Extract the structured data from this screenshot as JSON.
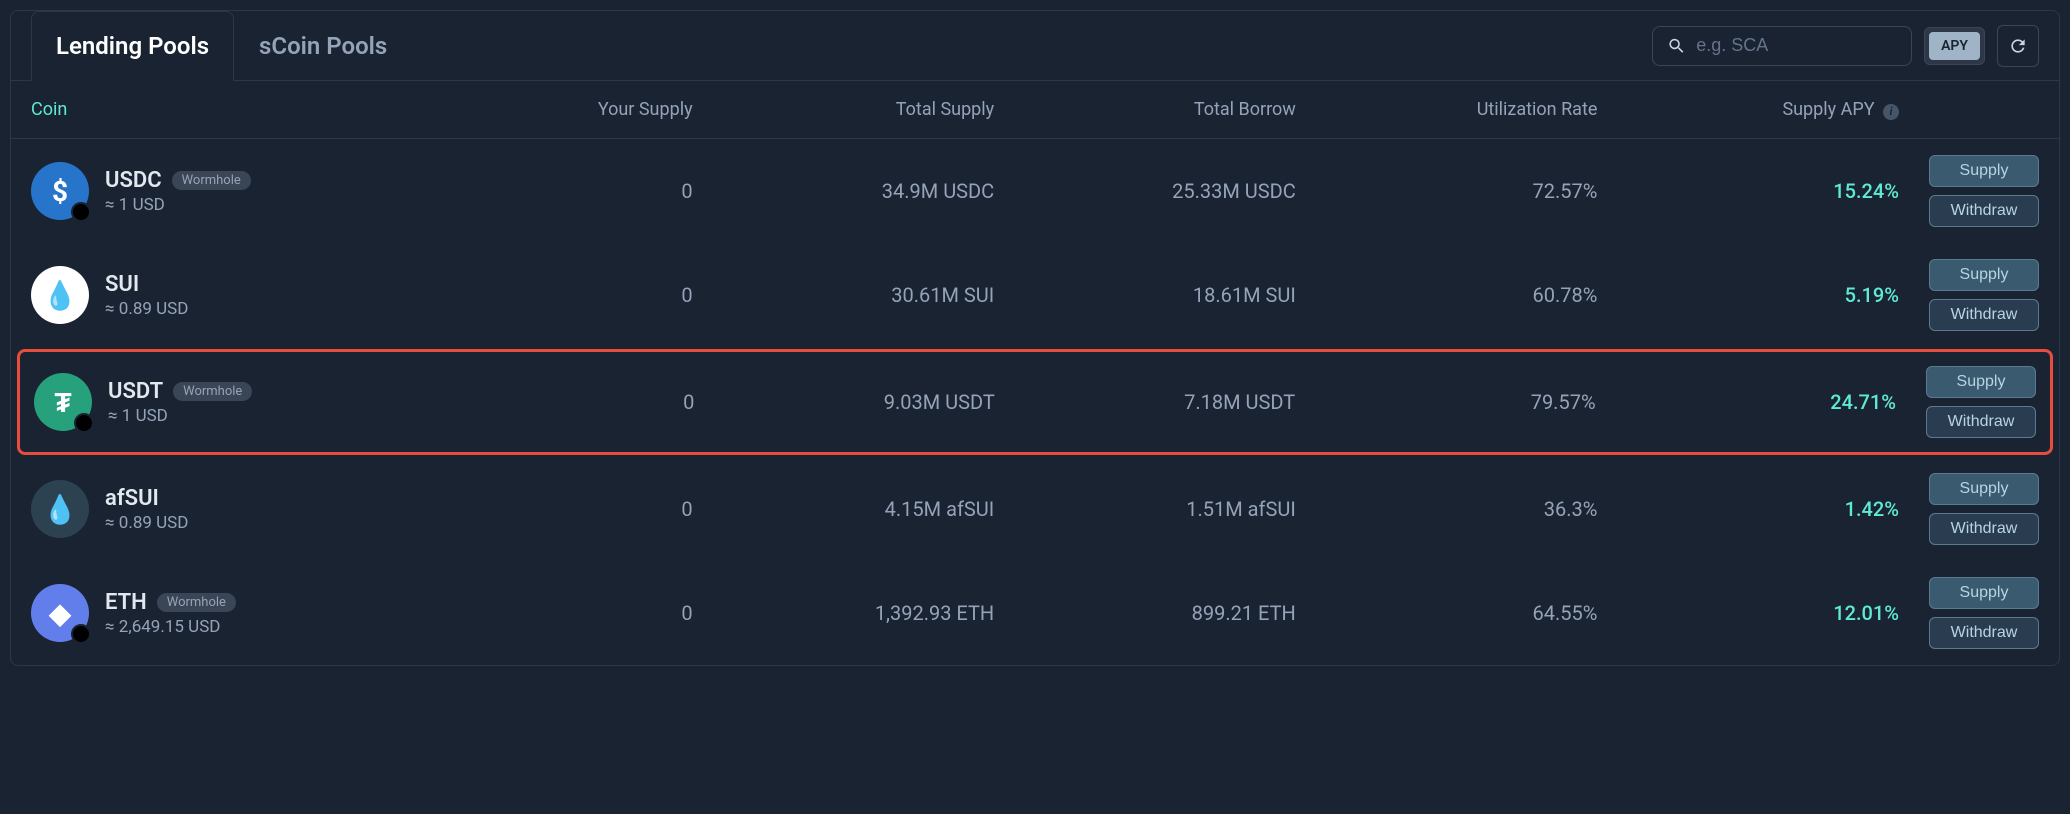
{
  "tabs": {
    "active": "Lending Pools",
    "inactive": "sCoin Pools"
  },
  "search": {
    "placeholder": "e.g. SCA"
  },
  "apy_button": "APY",
  "columns": {
    "coin": "Coin",
    "your_supply": "Your Supply",
    "total_supply": "Total Supply",
    "total_borrow": "Total Borrow",
    "utilization": "Utilization Rate",
    "supply_apy": "Supply APY"
  },
  "action_labels": {
    "supply": "Supply",
    "withdraw": "Withdraw"
  },
  "wormhole_label": "Wormhole",
  "rows": [
    {
      "name": "USDC",
      "wormhole": true,
      "price": "≈ 1 USD",
      "your_supply": "0",
      "total_supply": "34.9M USDC",
      "total_borrow": "25.33M USDC",
      "utilization": "72.57%",
      "apy": "15.24%",
      "icon_bg": "#2775ca",
      "icon_text": "$",
      "highlighted": false,
      "badge": true
    },
    {
      "name": "SUI",
      "wormhole": false,
      "price": "≈ 0.89 USD",
      "your_supply": "0",
      "total_supply": "30.61M SUI",
      "total_borrow": "18.61M SUI",
      "utilization": "60.78%",
      "apy": "5.19%",
      "icon_bg": "#ffffff",
      "icon_text": "💧",
      "highlighted": false,
      "badge": false
    },
    {
      "name": "USDT",
      "wormhole": true,
      "price": "≈ 1 USD",
      "your_supply": "0",
      "total_supply": "9.03M USDT",
      "total_borrow": "7.18M USDT",
      "utilization": "79.57%",
      "apy": "24.71%",
      "icon_bg": "#26a17b",
      "icon_text": "₮",
      "highlighted": true,
      "badge": true
    },
    {
      "name": "afSUI",
      "wormhole": false,
      "price": "≈ 0.89 USD",
      "your_supply": "0",
      "total_supply": "4.15M afSUI",
      "total_borrow": "1.51M afSUI",
      "utilization": "36.3%",
      "apy": "1.42%",
      "icon_bg": "#2d4250",
      "icon_text": "💧",
      "highlighted": false,
      "badge": false
    },
    {
      "name": "ETH",
      "wormhole": true,
      "price": "≈ 2,649.15 USD",
      "your_supply": "0",
      "total_supply": "1,392.93 ETH",
      "total_borrow": "899.21 ETH",
      "utilization": "64.55%",
      "apy": "12.01%",
      "icon_bg": "#627eea",
      "icon_text": "◆",
      "highlighted": false,
      "badge": true
    }
  ]
}
